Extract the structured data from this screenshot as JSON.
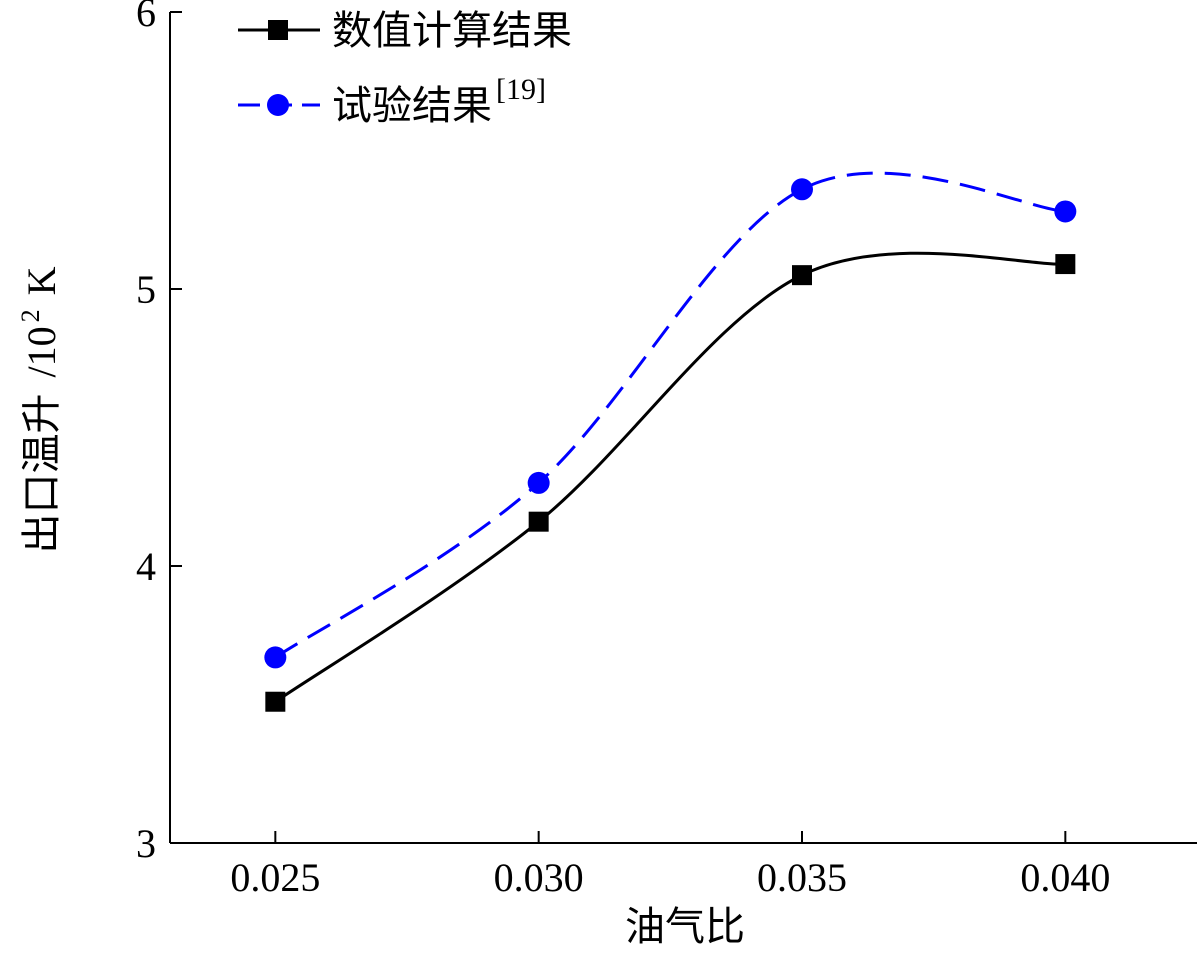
{
  "chart_data": {
    "type": "line",
    "xlabel": "油气比",
    "ylabel": {
      "quantity": "出口温升",
      "unit_prefix": "/10",
      "unit_exp": "2",
      "unit_suffix": "K"
    },
    "xlim": [
      0.023,
      0.0425
    ],
    "ylim": [
      3,
      6
    ],
    "x_ticks": [
      {
        "value": 0.025,
        "label": "0.025"
      },
      {
        "value": 0.03,
        "label": "0.030"
      },
      {
        "value": 0.035,
        "label": "0.035"
      },
      {
        "value": 0.04,
        "label": "0.040"
      }
    ],
    "y_ticks": [
      {
        "value": 3,
        "label": "3"
      },
      {
        "value": 4,
        "label": "4"
      },
      {
        "value": 5,
        "label": "5"
      },
      {
        "value": 6,
        "label": "6"
      }
    ],
    "legend_position": "top-left",
    "series": [
      {
        "name": "数值计算结果",
        "ref": "",
        "color": "#000000",
        "line_style": "solid",
        "marker": "square",
        "x": [
          0.025,
          0.03,
          0.035,
          0.04
        ],
        "y": [
          3.51,
          4.16,
          5.05,
          5.09
        ]
      },
      {
        "name": "试验结果",
        "ref": "[19]",
        "color": "#0000ff",
        "line_style": "dashed",
        "marker": "circle",
        "x": [
          0.025,
          0.03,
          0.035,
          0.04
        ],
        "y": [
          3.67,
          4.3,
          5.36,
          5.28
        ]
      }
    ]
  }
}
